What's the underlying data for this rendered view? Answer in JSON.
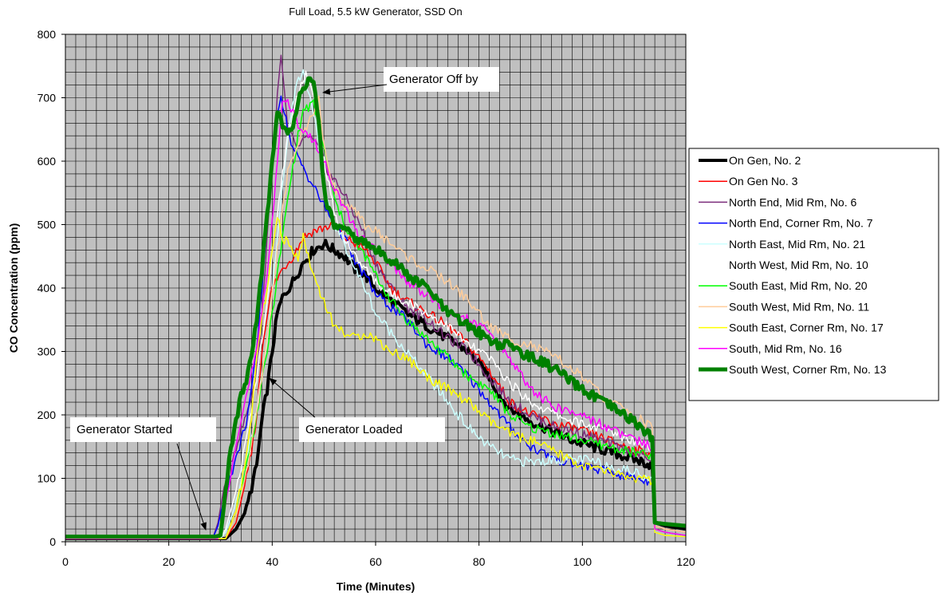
{
  "chart_data": {
    "type": "line",
    "title": "Full Load, 5.5 kW Generator, SSD On",
    "xlabel": "Time (Minutes)",
    "ylabel": "CO Concentration (ppm)",
    "xlim": [
      0,
      120
    ],
    "ylim": [
      0,
      800
    ],
    "x_ticks": [
      0,
      20,
      40,
      60,
      80,
      100,
      120
    ],
    "y_ticks": [
      0,
      100,
      200,
      300,
      400,
      500,
      600,
      700,
      800
    ],
    "grid": true,
    "plot_background": "#c0c0c0",
    "legend_position": "right",
    "annotations": [
      {
        "text": "Generator Started",
        "target": [
          28.5,
          10
        ]
      },
      {
        "text": "Generator Loaded",
        "target": [
          40,
          255
        ]
      },
      {
        "text": "Generator Off by",
        "target": [
          48,
          715
        ]
      }
    ],
    "series": [
      {
        "name": "On Gen, No. 2",
        "color": "#000000",
        "width": 4,
        "x": [
          0,
          30,
          31,
          33,
          35,
          37,
          38,
          39,
          40,
          41,
          42,
          44,
          46,
          48,
          50,
          52,
          54,
          56,
          58,
          60,
          63,
          66,
          70,
          74,
          78,
          80,
          82,
          84,
          86,
          88,
          90,
          94,
          98,
          102,
          106,
          110,
          112,
          113.5,
          114,
          116,
          120
        ],
        "y": [
          5,
          5,
          5,
          20,
          50,
          120,
          190,
          240,
          300,
          360,
          385,
          410,
          440,
          460,
          470,
          460,
          450,
          430,
          420,
          400,
          380,
          360,
          340,
          320,
          300,
          280,
          260,
          230,
          210,
          200,
          190,
          175,
          160,
          150,
          140,
          130,
          125,
          120,
          30,
          25,
          20
        ]
      },
      {
        "name": "On Gen No. 3",
        "color": "#ff0000",
        "width": 1.5,
        "x": [
          0,
          31,
          33,
          35,
          36,
          37,
          38,
          39,
          40,
          42,
          44,
          46,
          48,
          50,
          52,
          54,
          56,
          58,
          60,
          63,
          66,
          70,
          74,
          78,
          82,
          86,
          90,
          95,
          100,
          105,
          110,
          113.5,
          114,
          116,
          120
        ],
        "y": [
          5,
          5,
          30,
          100,
          140,
          200,
          300,
          360,
          400,
          430,
          450,
          480,
          490,
          495,
          500,
          480,
          470,
          460,
          440,
          400,
          380,
          360,
          340,
          310,
          270,
          220,
          200,
          185,
          175,
          160,
          145,
          140,
          25,
          20,
          15
        ]
      },
      {
        "name": "North End, Mid Rm, No. 6",
        "color": "#7b2c7b",
        "width": 1.5,
        "x": [
          0,
          28.5,
          29.5,
          31,
          33,
          35,
          36,
          37,
          38,
          39,
          40,
          41,
          41.7,
          43,
          45,
          47,
          49,
          51,
          53,
          55,
          57,
          60,
          63,
          66,
          70,
          74,
          78,
          82,
          86,
          90,
          95,
          100,
          105,
          110,
          113.5,
          114,
          116,
          120
        ],
        "y": [
          5,
          5,
          30,
          100,
          150,
          200,
          230,
          270,
          350,
          480,
          600,
          700,
          765,
          650,
          620,
          640,
          620,
          580,
          560,
          530,
          500,
          440,
          400,
          370,
          350,
          320,
          300,
          260,
          220,
          200,
          180,
          170,
          155,
          140,
          130,
          20,
          15,
          10
        ]
      },
      {
        "name": "North End, Corner Rm, No. 7",
        "color": "#0000ff",
        "width": 1.5,
        "x": [
          0,
          28.5,
          29.5,
          31,
          33,
          35,
          36,
          37,
          38,
          39,
          40,
          41,
          41.7,
          43,
          44,
          46,
          48,
          50,
          52,
          54,
          56,
          58,
          60,
          63,
          66,
          70,
          74,
          78,
          82,
          86,
          90,
          95,
          100,
          105,
          110,
          113.5,
          114,
          116,
          120
        ],
        "y": [
          5,
          5,
          25,
          80,
          130,
          190,
          240,
          300,
          400,
          500,
          600,
          680,
          705,
          650,
          620,
          590,
          560,
          530,
          500,
          480,
          440,
          420,
          390,
          370,
          350,
          310,
          290,
          260,
          220,
          180,
          150,
          130,
          120,
          110,
          100,
          95,
          15,
          10,
          8
        ]
      },
      {
        "name": "North East, Mid Rm, No. 21",
        "color": "#ccffff",
        "width": 1.5,
        "x": [
          0,
          30,
          31,
          33,
          35,
          37,
          39,
          41,
          43,
          44.5,
          46,
          48,
          50,
          52,
          54,
          56,
          58,
          60,
          63,
          66,
          70,
          74,
          78,
          82,
          86,
          90,
          95,
          100,
          105,
          110,
          113.5,
          114,
          116,
          120
        ],
        "y": [
          5,
          5,
          15,
          60,
          130,
          210,
          320,
          480,
          640,
          720,
          740,
          680,
          560,
          500,
          470,
          430,
          400,
          360,
          330,
          300,
          260,
          220,
          180,
          150,
          130,
          125,
          130,
          130,
          120,
          110,
          100,
          15,
          10,
          8
        ]
      },
      {
        "name": "North West, Mid Rm, No. 10",
        "color": "#ffffff",
        "width": 1.5,
        "x": [
          0,
          30,
          31,
          33,
          35,
          37,
          39,
          41,
          43,
          45,
          46.5,
          48,
          50,
          52,
          54,
          56,
          58,
          60,
          63,
          66,
          70,
          74,
          78,
          82,
          86,
          90,
          95,
          100,
          105,
          110,
          113.5,
          114,
          116,
          120
        ],
        "y": [
          5,
          5,
          20,
          80,
          160,
          260,
          380,
          520,
          640,
          710,
          740,
          700,
          600,
          520,
          480,
          450,
          430,
          410,
          390,
          380,
          360,
          340,
          310,
          290,
          250,
          220,
          200,
          185,
          175,
          160,
          150,
          20,
          15,
          10
        ]
      },
      {
        "name": "South East, Mid Rm, No. 20",
        "color": "#00ff00",
        "width": 1.5,
        "x": [
          0,
          31,
          33,
          35,
          37,
          39,
          41,
          43,
          45,
          46,
          48,
          50,
          52,
          54,
          56,
          58,
          60,
          63,
          66,
          70,
          74,
          78,
          82,
          86,
          90,
          95,
          100,
          105,
          110,
          113.5,
          114,
          116,
          120
        ],
        "y": [
          5,
          5,
          40,
          120,
          200,
          300,
          420,
          540,
          640,
          680,
          690,
          620,
          540,
          500,
          470,
          450,
          420,
          380,
          350,
          320,
          290,
          260,
          240,
          200,
          180,
          170,
          160,
          150,
          140,
          135,
          20,
          15,
          10
        ]
      },
      {
        "name": "South West, Mid Rm, No. 11",
        "color": "#ffcc99",
        "width": 1.5,
        "x": [
          0,
          31,
          33,
          35,
          37,
          39,
          41,
          43,
          45,
          47,
          49,
          50,
          52,
          54,
          56,
          58,
          60,
          63,
          66,
          70,
          74,
          78,
          82,
          86,
          90,
          95,
          100,
          105,
          108,
          110,
          113.5,
          114,
          116,
          120
        ],
        "y": [
          5,
          5,
          40,
          110,
          200,
          320,
          460,
          580,
          630,
          660,
          700,
          620,
          560,
          530,
          520,
          500,
          490,
          470,
          450,
          430,
          410,
          380,
          340,
          320,
          310,
          290,
          260,
          220,
          210,
          200,
          180,
          25,
          20,
          15
        ]
      },
      {
        "name": "South East, Corner Rm, No. 17",
        "color": "#ffff00",
        "width": 1.5,
        "x": [
          0,
          31,
          33,
          35,
          36,
          37,
          38,
          39,
          40,
          41,
          42,
          43,
          44,
          45,
          46,
          48,
          50,
          52,
          54,
          56,
          58,
          60,
          63,
          66,
          70,
          74,
          78,
          82,
          86,
          90,
          95,
          100,
          105,
          110,
          113.5,
          114,
          116,
          120
        ],
        "y": [
          5,
          5,
          50,
          130,
          200,
          290,
          350,
          400,
          460,
          510,
          480,
          470,
          460,
          450,
          480,
          420,
          380,
          340,
          330,
          320,
          330,
          320,
          300,
          290,
          260,
          240,
          220,
          190,
          170,
          160,
          140,
          120,
          110,
          100,
          95,
          15,
          10,
          8
        ]
      },
      {
        "name": "South, Mid Rm, No. 16",
        "color": "#ff00ff",
        "width": 1.5,
        "x": [
          0,
          29.5,
          31,
          33,
          35,
          37,
          39,
          41,
          42,
          43,
          45,
          47,
          49,
          51,
          53,
          55,
          57,
          60,
          63,
          66,
          70,
          74,
          78,
          82,
          86,
          90,
          95,
          100,
          105,
          110,
          113.5,
          114,
          116,
          120
        ],
        "y": [
          5,
          5,
          60,
          160,
          230,
          300,
          420,
          600,
          700,
          690,
          660,
          640,
          620,
          580,
          540,
          510,
          480,
          460,
          440,
          410,
          390,
          360,
          350,
          330,
          290,
          240,
          210,
          200,
          180,
          160,
          150,
          20,
          15,
          10
        ]
      },
      {
        "name": "South West, Corner Rm, No. 13",
        "color": "#008000",
        "width": 5,
        "x": [
          0,
          29,
          30,
          31,
          32,
          33,
          34,
          35,
          36,
          37,
          38,
          39,
          40,
          41,
          42,
          43,
          44,
          45,
          46,
          47,
          48,
          49,
          50,
          51,
          52,
          54,
          56,
          58,
          60,
          62,
          64,
          66,
          68,
          70,
          72,
          74,
          76,
          78,
          80,
          82,
          84,
          86,
          88,
          90,
          92,
          94,
          96,
          98,
          100,
          102,
          104,
          106,
          108,
          110,
          112,
          113.5,
          114,
          116,
          120
        ],
        "y": [
          8,
          8,
          10,
          80,
          150,
          190,
          230,
          250,
          290,
          350,
          430,
          510,
          600,
          680,
          660,
          640,
          650,
          700,
          720,
          725,
          720,
          660,
          560,
          520,
          500,
          490,
          480,
          470,
          460,
          450,
          440,
          420,
          410,
          400,
          380,
          360,
          350,
          340,
          330,
          320,
          310,
          310,
          300,
          290,
          285,
          275,
          265,
          250,
          240,
          230,
          220,
          210,
          200,
          190,
          175,
          165,
          30,
          28,
          25
        ]
      }
    ]
  }
}
